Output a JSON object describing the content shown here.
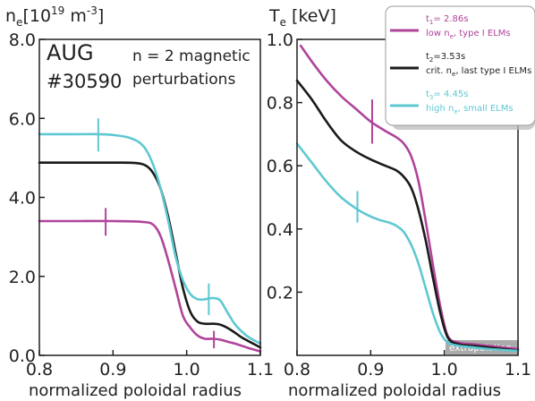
{
  "colors": {
    "t1": "#b0449a",
    "t2": "#1a1a1a",
    "t3": "#5ec8d2",
    "axis": "#231f20"
  },
  "chart_data": [
    {
      "type": "line",
      "ylabel": "n",
      "ylabel_sub": "e",
      "ylabel_unit_prefix": "[10",
      "ylabel_unit_exp": "19",
      "ylabel_unit_mid": " m",
      "ylabel_unit_exp2": "-3",
      "ylabel_unit_suffix": "]",
      "xlabel": "normalized poloidal radius",
      "xlim": [
        0.8,
        1.1
      ],
      "ylim": [
        0,
        8.0
      ],
      "xticks": [
        0.8,
        0.9,
        1.0,
        1.1
      ],
      "xtick_labels": [
        "0.8",
        "0.9",
        "1.0",
        "1.1"
      ],
      "yticks": [
        0,
        2,
        4,
        6,
        8
      ],
      "ytick_labels": [
        "0.0",
        "2.0",
        "4.0",
        "6.0",
        "8.0"
      ],
      "annotations": {
        "machine": "AUG",
        "shot": "#30590",
        "perturb_line1": "n = 2 magnetic",
        "perturb_line2": "perturbations"
      },
      "series": [
        {
          "key": "t1",
          "x": [
            0.8,
            0.85,
            0.9,
            0.94,
            0.955,
            0.965,
            0.975,
            0.985,
            0.995,
            1.005,
            1.015,
            1.025,
            1.035,
            1.045,
            1.055,
            1.065,
            1.075,
            1.085,
            1.1
          ],
          "y": [
            3.4,
            3.4,
            3.4,
            3.38,
            3.3,
            3.0,
            2.4,
            1.7,
            1.0,
            0.7,
            0.5,
            0.42,
            0.42,
            0.4,
            0.35,
            0.3,
            0.24,
            0.18,
            0.1
          ],
          "error_bars": [
            {
              "x": 0.89,
              "y": 3.38,
              "err": 0.35
            },
            {
              "x": 1.037,
              "y": 0.4,
              "err": 0.22
            }
          ]
        },
        {
          "key": "t2",
          "x": [
            0.8,
            0.85,
            0.9,
            0.93,
            0.945,
            0.955,
            0.965,
            0.975,
            0.985,
            0.995,
            1.005,
            1.015,
            1.025,
            1.035,
            1.045,
            1.055,
            1.065,
            1.075,
            1.085,
            1.1
          ],
          "y": [
            4.88,
            4.88,
            4.88,
            4.87,
            4.8,
            4.6,
            4.2,
            3.5,
            2.6,
            1.7,
            1.1,
            0.85,
            0.8,
            0.8,
            0.78,
            0.7,
            0.58,
            0.45,
            0.35,
            0.2
          ],
          "error_bars": []
        },
        {
          "key": "t3",
          "x": [
            0.8,
            0.85,
            0.88,
            0.9,
            0.92,
            0.935,
            0.945,
            0.955,
            0.965,
            0.975,
            0.985,
            0.995,
            1.005,
            1.015,
            1.025,
            1.035,
            1.045,
            1.055,
            1.065,
            1.075,
            1.085,
            1.1
          ],
          "y": [
            5.6,
            5.6,
            5.6,
            5.58,
            5.52,
            5.4,
            5.2,
            4.8,
            4.2,
            3.4,
            2.5,
            1.9,
            1.55,
            1.42,
            1.42,
            1.45,
            1.4,
            1.1,
            0.8,
            0.6,
            0.45,
            0.3
          ],
          "error_bars": [
            {
              "x": 0.88,
              "y": 5.58,
              "err": 0.42
            },
            {
              "x": 1.03,
              "y": 1.42,
              "err": 0.4
            }
          ]
        }
      ]
    },
    {
      "type": "line",
      "ylabel": "T",
      "ylabel_sub": "e",
      "ylabel_unit": " [keV]",
      "xlabel": "normalized poloidal radius",
      "xlim": [
        0.8,
        1.1
      ],
      "ylim": [
        0,
        1.0
      ],
      "xticks": [
        0.8,
        0.9,
        1.0,
        1.1
      ],
      "xtick_labels": [
        "0.8",
        "0.9",
        "1.0",
        "1.1"
      ],
      "yticks": [
        0.2,
        0.4,
        0.6,
        0.8,
        1.0
      ],
      "ytick_labels": [
        "0.2",
        "0.4",
        "0.6",
        "0.8",
        "1.0"
      ],
      "extrapolation_label": "extrapolation",
      "extrapolation_from": 1.005,
      "legend": {
        "placement": "top-right",
        "entries": [
          {
            "key": "t1",
            "line1": "t",
            "line1_sub": "1",
            "line1_rest": "= 2.86s",
            "line2": "low n",
            "line2_sub": "e",
            "line2_rest": ", type I ELMs"
          },
          {
            "key": "t2",
            "line1": "t",
            "line1_sub": "2",
            "line1_rest": "=3.53s",
            "line2": "crit. n",
            "line2_sub": "e",
            "line2_rest": ", last type I ELMs"
          },
          {
            "key": "t3",
            "line1": "t",
            "line1_sub": "3",
            "line1_rest": "= 4.45s",
            "line2": "high n",
            "line2_sub": "e",
            "line2_rest": ", small ELMs"
          }
        ]
      },
      "series": [
        {
          "key": "t1",
          "x": [
            0.805,
            0.82,
            0.84,
            0.86,
            0.88,
            0.9,
            0.92,
            0.935,
            0.945,
            0.955,
            0.965,
            0.975,
            0.985,
            0.995,
            1.005,
            1.02,
            1.04,
            1.06,
            1.08,
            1.1
          ],
          "y": [
            0.98,
            0.93,
            0.87,
            0.82,
            0.78,
            0.74,
            0.71,
            0.69,
            0.67,
            0.63,
            0.55,
            0.42,
            0.28,
            0.15,
            0.06,
            0.04,
            0.035,
            0.03,
            0.025,
            0.02
          ],
          "error_bars": [
            {
              "x": 0.902,
              "y": 0.74,
              "err": 0.07
            }
          ]
        },
        {
          "key": "t2",
          "x": [
            0.8,
            0.82,
            0.84,
            0.86,
            0.88,
            0.9,
            0.92,
            0.935,
            0.945,
            0.955,
            0.965,
            0.975,
            0.985,
            0.995,
            1.005,
            1.02,
            1.04,
            1.06,
            1.08,
            1.1
          ],
          "y": [
            0.87,
            0.81,
            0.74,
            0.68,
            0.645,
            0.62,
            0.6,
            0.585,
            0.565,
            0.53,
            0.46,
            0.36,
            0.24,
            0.13,
            0.055,
            0.035,
            0.03,
            0.025,
            0.02,
            0.015
          ],
          "error_bars": []
        },
        {
          "key": "t3",
          "x": [
            0.8,
            0.82,
            0.84,
            0.86,
            0.88,
            0.895,
            0.91,
            0.925,
            0.935,
            0.945,
            0.955,
            0.965,
            0.975,
            0.985,
            0.995,
            1.005,
            1.02,
            1.04,
            1.06,
            1.08,
            1.1
          ],
          "y": [
            0.67,
            0.61,
            0.55,
            0.5,
            0.465,
            0.445,
            0.43,
            0.42,
            0.41,
            0.39,
            0.35,
            0.29,
            0.21,
            0.13,
            0.07,
            0.04,
            0.03,
            0.025,
            0.02,
            0.017,
            0.014
          ],
          "error_bars": [
            {
              "x": 0.882,
              "y": 0.47,
              "err": 0.05
            }
          ]
        }
      ]
    }
  ]
}
